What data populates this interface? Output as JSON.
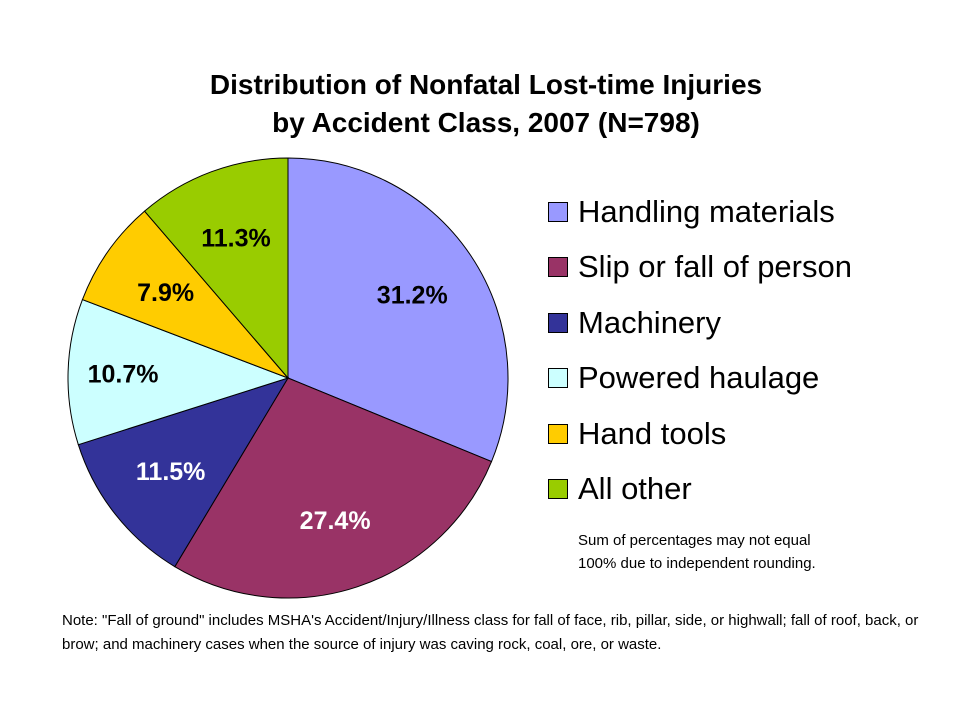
{
  "chart_data": {
    "type": "pie",
    "title": "Distribution of Nonfatal Lost-time Injuries",
    "subtitle": "by Accident Class, 2007 (N=798)",
    "categories": [
      "Handling materials",
      "Slip or fall of person",
      "Machinery",
      "Powered haulage",
      "Hand tools",
      "All other"
    ],
    "values": [
      31.2,
      27.4,
      11.5,
      10.7,
      7.9,
      11.3
    ],
    "labels": [
      "31.2%",
      "27.4%",
      "11.5%",
      "10.7%",
      "7.9%",
      "11.3%"
    ],
    "colors": [
      "#9999FF",
      "#993366",
      "#333399",
      "#CCFFFF",
      "#FFCC00",
      "#99CC00"
    ],
    "label_colors": [
      "#000000",
      "#FFFFFF",
      "#FFFFFF",
      "#000000",
      "#000000",
      "#000000"
    ],
    "start": "top",
    "direction": "clockwise",
    "legend_position": "right"
  },
  "footnote": [
    "Sum of percentages may not equal",
    "100% due to independent rounding."
  ],
  "note": "Note: \"Fall of ground\" includes MSHA's Accident/Injury/Illness class for fall of face, rib, pillar, side, or highwall; fall of roof, back, or brow; and machinery cases when the source of injury was caving rock, coal, ore, or waste."
}
